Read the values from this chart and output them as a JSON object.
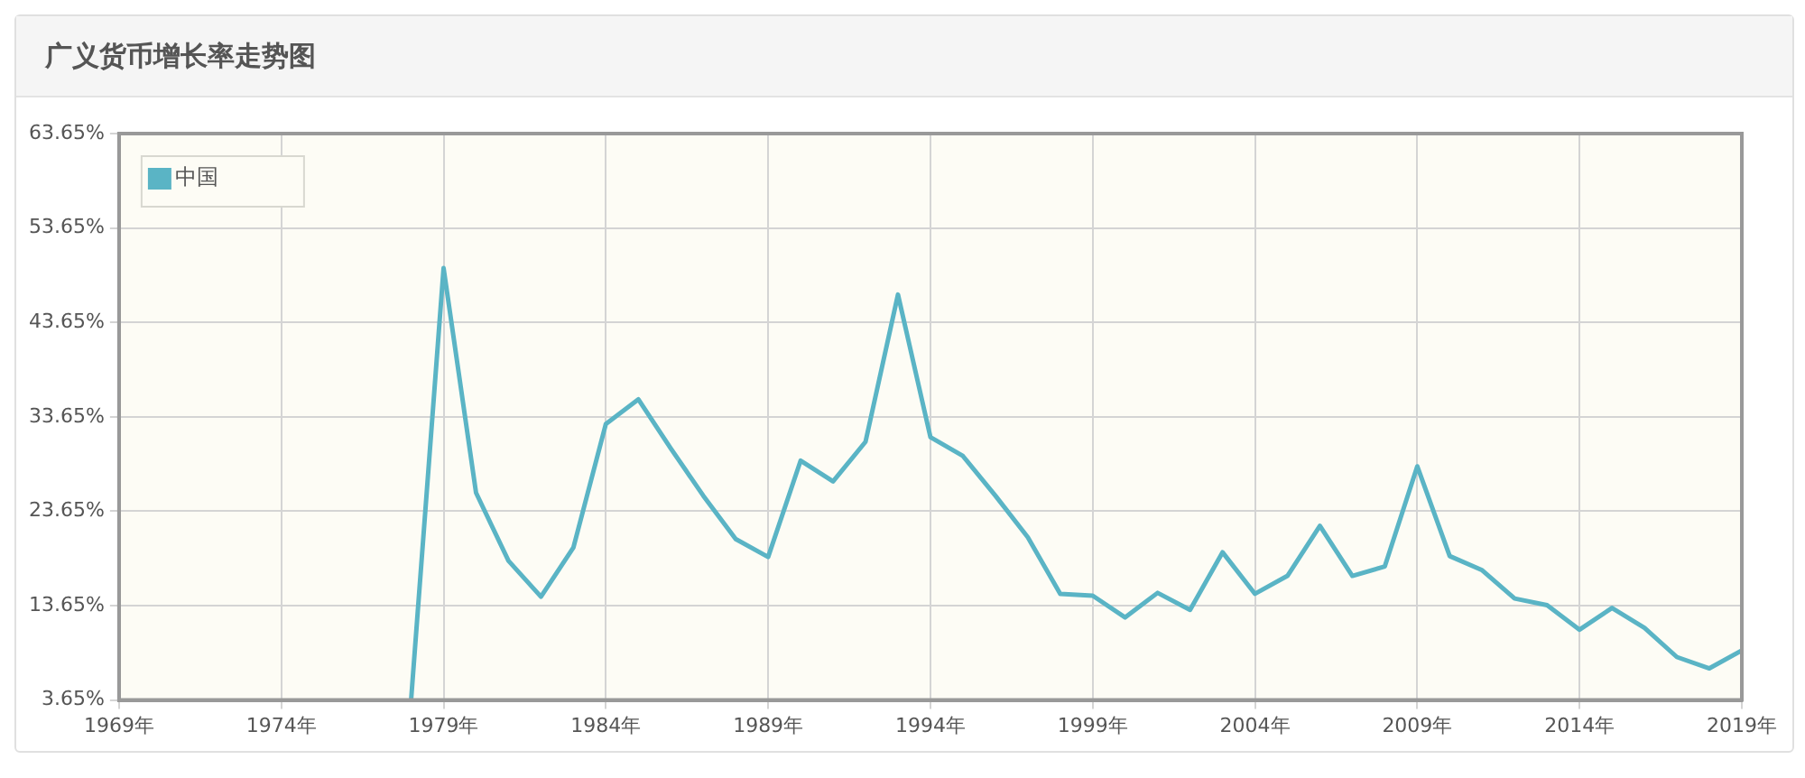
{
  "chart_data": {
    "type": "line",
    "title": "广义货币增长率走势图",
    "x": [
      1978,
      1979,
      1980,
      1981,
      1982,
      1983,
      1984,
      1985,
      1986,
      1987,
      1988,
      1989,
      1990,
      1991,
      1992,
      1993,
      1994,
      1995,
      1996,
      1997,
      1998,
      1999,
      2000,
      2001,
      2002,
      2003,
      2004,
      2005,
      2006,
      2007,
      2008,
      2009,
      2010,
      2011,
      2012,
      2013,
      2014,
      2015,
      2016,
      2017,
      2018,
      2019
    ],
    "series": [
      {
        "name": "中国",
        "color": "#5ab4c5",
        "values": [
          3.7,
          49.4,
          25.6,
          18.4,
          14.6,
          19.8,
          32.9,
          35.5,
          30.3,
          25.3,
          20.7,
          18.8,
          29.0,
          26.8,
          31.0,
          46.6,
          31.5,
          29.5,
          25.3,
          20.9,
          14.9,
          14.7,
          12.4,
          15.0,
          13.2,
          19.3,
          14.9,
          16.8,
          22.1,
          16.8,
          17.8,
          28.4,
          18.9,
          17.4,
          14.4,
          13.7,
          11.1,
          13.4,
          11.3,
          8.2,
          7.0,
          8.9
        ]
      }
    ],
    "xlim": [
      1969,
      2019
    ],
    "xticks": [
      {
        "value": 1969,
        "label": "1969年"
      },
      {
        "value": 1974,
        "label": "1974年"
      },
      {
        "value": 1979,
        "label": "1979年"
      },
      {
        "value": 1984,
        "label": "1984年"
      },
      {
        "value": 1989,
        "label": "1989年"
      },
      {
        "value": 1994,
        "label": "1994年"
      },
      {
        "value": 1999,
        "label": "1999年"
      },
      {
        "value": 2004,
        "label": "2004年"
      },
      {
        "value": 2009,
        "label": "2009年"
      },
      {
        "value": 2014,
        "label": "2014年"
      },
      {
        "value": 2019,
        "label": "2019年"
      }
    ],
    "ylim": [
      3.65,
      63.65
    ],
    "yticks": [
      {
        "value": 3.65,
        "label": "3.65%"
      },
      {
        "value": 13.65,
        "label": "13.65%"
      },
      {
        "value": 23.65,
        "label": "23.65%"
      },
      {
        "value": 33.65,
        "label": "33.65%"
      },
      {
        "value": 43.65,
        "label": "43.65%"
      },
      {
        "value": 53.65,
        "label": "53.65%"
      },
      {
        "value": 63.65,
        "label": "63.65%"
      }
    ],
    "grid": true,
    "legend": "top left",
    "marker": "none",
    "line_style": "solid"
  }
}
